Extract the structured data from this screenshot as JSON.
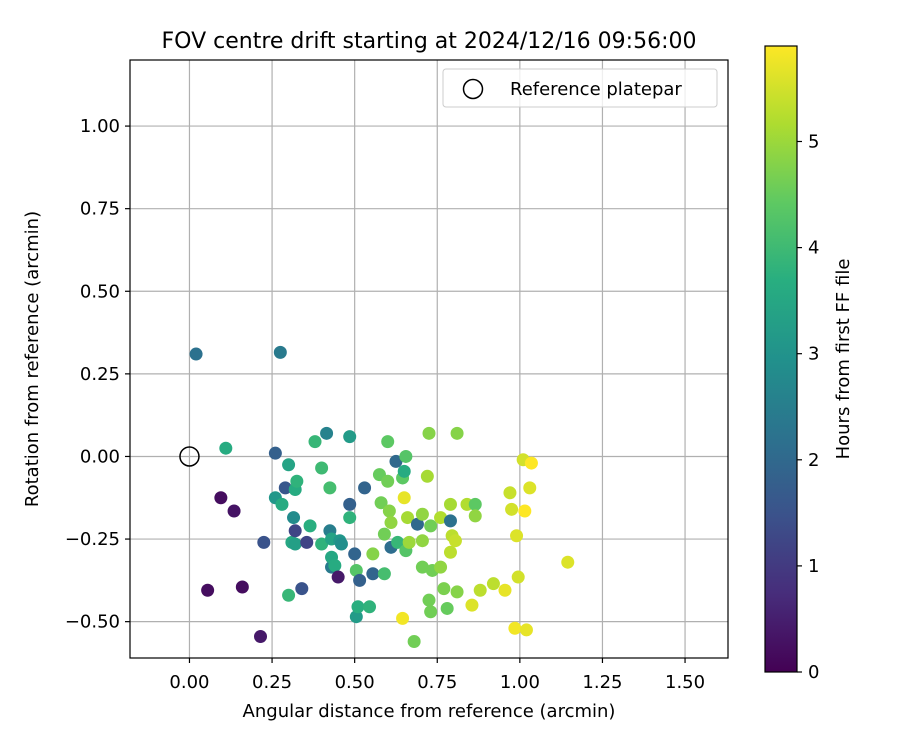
{
  "chart_data": {
    "type": "scatter",
    "title": "FOV centre drift starting at 2024/12/16 09:56:00",
    "xlabel": "Angular distance from reference (arcmin)",
    "ylabel": "Rotation from reference (arcmin)",
    "xlim": [
      -0.18,
      1.63
    ],
    "ylim": [
      -0.61,
      1.2
    ],
    "xticks": [
      0.0,
      0.25,
      0.5,
      0.75,
      1.0,
      1.25,
      1.5
    ],
    "xtick_labels": [
      "0.00",
      "0.25",
      "0.50",
      "0.75",
      "1.00",
      "1.25",
      "1.50"
    ],
    "yticks": [
      -0.5,
      -0.25,
      0.0,
      0.25,
      0.5,
      0.75,
      1.0
    ],
    "ytick_labels": [
      "−0.50",
      "−0.25",
      "0.00",
      "0.25",
      "0.50",
      "0.75",
      "1.00"
    ],
    "grid": true,
    "legend": {
      "position": "top-right",
      "entries": [
        "Reference platepar"
      ]
    },
    "reference_point": {
      "x": 0.0,
      "y": 0.0
    },
    "colorbar": {
      "label": "Hours from first FF file",
      "range": [
        0,
        5.9
      ],
      "ticks": [
        0,
        1,
        2,
        3,
        4,
        5
      ],
      "tick_labels": [
        "0",
        "1",
        "2",
        "3",
        "4",
        "5"
      ],
      "colormap": "viridis"
    },
    "points": [
      {
        "x": 0.02,
        "y": 0.31,
        "h": 2.2
      },
      {
        "x": 0.275,
        "y": 0.315,
        "h": 2.4
      },
      {
        "x": 0.11,
        "y": 0.025,
        "h": 3.6
      },
      {
        "x": 0.095,
        "y": -0.125,
        "h": 0.2
      },
      {
        "x": 0.135,
        "y": -0.165,
        "h": 0.3
      },
      {
        "x": 0.055,
        "y": -0.405,
        "h": 0.2
      },
      {
        "x": 0.16,
        "y": -0.395,
        "h": 0.2
      },
      {
        "x": 0.215,
        "y": -0.545,
        "h": 0.4
      },
      {
        "x": 0.225,
        "y": -0.26,
        "h": 1.5
      },
      {
        "x": 0.26,
        "y": 0.01,
        "h": 1.8
      },
      {
        "x": 0.26,
        "y": -0.125,
        "h": 3.1
      },
      {
        "x": 0.28,
        "y": -0.145,
        "h": 3.6
      },
      {
        "x": 0.29,
        "y": -0.095,
        "h": 1.6
      },
      {
        "x": 0.3,
        "y": -0.025,
        "h": 3.4
      },
      {
        "x": 0.3,
        "y": -0.42,
        "h": 3.9
      },
      {
        "x": 0.31,
        "y": -0.26,
        "h": 3.5
      },
      {
        "x": 0.315,
        "y": -0.185,
        "h": 2.8
      },
      {
        "x": 0.32,
        "y": -0.1,
        "h": 3.6
      },
      {
        "x": 0.32,
        "y": -0.225,
        "h": 1.2
      },
      {
        "x": 0.32,
        "y": -0.265,
        "h": 3.3
      },
      {
        "x": 0.325,
        "y": -0.075,
        "h": 3.8
      },
      {
        "x": 0.34,
        "y": -0.4,
        "h": 1.5
      },
      {
        "x": 0.355,
        "y": -0.26,
        "h": 1.2
      },
      {
        "x": 0.365,
        "y": -0.21,
        "h": 3.7
      },
      {
        "x": 0.38,
        "y": 0.045,
        "h": 3.9
      },
      {
        "x": 0.4,
        "y": -0.035,
        "h": 4.0
      },
      {
        "x": 0.4,
        "y": -0.265,
        "h": 3.8
      },
      {
        "x": 0.415,
        "y": 0.07,
        "h": 2.6
      },
      {
        "x": 0.425,
        "y": -0.095,
        "h": 4.1
      },
      {
        "x": 0.425,
        "y": -0.225,
        "h": 2.5
      },
      {
        "x": 0.43,
        "y": -0.25,
        "h": 3.4
      },
      {
        "x": 0.43,
        "y": -0.335,
        "h": 2.4
      },
      {
        "x": 0.43,
        "y": -0.305,
        "h": 3.5
      },
      {
        "x": 0.44,
        "y": -0.33,
        "h": 3.6
      },
      {
        "x": 0.45,
        "y": -0.365,
        "h": 0.4
      },
      {
        "x": 0.455,
        "y": -0.255,
        "h": 3.1
      },
      {
        "x": 0.46,
        "y": -0.265,
        "h": 2.9
      },
      {
        "x": 0.485,
        "y": 0.06,
        "h": 3.2
      },
      {
        "x": 0.485,
        "y": -0.145,
        "h": 1.8
      },
      {
        "x": 0.485,
        "y": -0.185,
        "h": 3.8
      },
      {
        "x": 0.5,
        "y": -0.295,
        "h": 1.9
      },
      {
        "x": 0.505,
        "y": -0.485,
        "h": 3.2
      },
      {
        "x": 0.505,
        "y": -0.345,
        "h": 4.3
      },
      {
        "x": 0.51,
        "y": -0.455,
        "h": 3.7
      },
      {
        "x": 0.515,
        "y": -0.375,
        "h": 1.8
      },
      {
        "x": 0.53,
        "y": -0.095,
        "h": 1.9
      },
      {
        "x": 0.545,
        "y": -0.455,
        "h": 3.8
      },
      {
        "x": 0.555,
        "y": -0.295,
        "h": 4.8
      },
      {
        "x": 0.555,
        "y": -0.355,
        "h": 1.9
      },
      {
        "x": 0.575,
        "y": -0.055,
        "h": 4.5
      },
      {
        "x": 0.58,
        "y": -0.14,
        "h": 4.6
      },
      {
        "x": 0.59,
        "y": -0.235,
        "h": 4.6
      },
      {
        "x": 0.59,
        "y": -0.355,
        "h": 4.1
      },
      {
        "x": 0.6,
        "y": 0.045,
        "h": 4.4
      },
      {
        "x": 0.6,
        "y": -0.075,
        "h": 4.6
      },
      {
        "x": 0.605,
        "y": -0.165,
        "h": 4.8
      },
      {
        "x": 0.61,
        "y": -0.275,
        "h": 2.1
      },
      {
        "x": 0.61,
        "y": -0.2,
        "h": 4.9
      },
      {
        "x": 0.625,
        "y": -0.015,
        "h": 2.0
      },
      {
        "x": 0.63,
        "y": -0.26,
        "h": 3.9
      },
      {
        "x": 0.645,
        "y": -0.065,
        "h": 4.4
      },
      {
        "x": 0.645,
        "y": -0.49,
        "h": 5.8
      },
      {
        "x": 0.65,
        "y": -0.125,
        "h": 5.7
      },
      {
        "x": 0.65,
        "y": -0.045,
        "h": 3.6
      },
      {
        "x": 0.655,
        "y": -0.285,
        "h": 4.3
      },
      {
        "x": 0.655,
        "y": 0.0,
        "h": 4.3
      },
      {
        "x": 0.66,
        "y": -0.185,
        "h": 5.1
      },
      {
        "x": 0.665,
        "y": -0.26,
        "h": 5.0
      },
      {
        "x": 0.68,
        "y": -0.56,
        "h": 4.6
      },
      {
        "x": 0.69,
        "y": -0.205,
        "h": 2.0
      },
      {
        "x": 0.705,
        "y": -0.175,
        "h": 4.9
      },
      {
        "x": 0.705,
        "y": -0.255,
        "h": 4.9
      },
      {
        "x": 0.705,
        "y": -0.335,
        "h": 4.6
      },
      {
        "x": 0.72,
        "y": -0.06,
        "h": 5.1
      },
      {
        "x": 0.725,
        "y": 0.07,
        "h": 4.8
      },
      {
        "x": 0.725,
        "y": -0.435,
        "h": 4.6
      },
      {
        "x": 0.73,
        "y": -0.21,
        "h": 4.6
      },
      {
        "x": 0.73,
        "y": -0.47,
        "h": 4.6
      },
      {
        "x": 0.735,
        "y": -0.345,
        "h": 4.6
      },
      {
        "x": 0.76,
        "y": -0.185,
        "h": 5.2
      },
      {
        "x": 0.76,
        "y": -0.335,
        "h": 4.9
      },
      {
        "x": 0.77,
        "y": -0.4,
        "h": 4.7
      },
      {
        "x": 0.78,
        "y": -0.46,
        "h": 4.5
      },
      {
        "x": 0.79,
        "y": -0.195,
        "h": 2.2
      },
      {
        "x": 0.79,
        "y": -0.29,
        "h": 5.3
      },
      {
        "x": 0.79,
        "y": -0.145,
        "h": 5.1
      },
      {
        "x": 0.795,
        "y": -0.24,
        "h": 5.3
      },
      {
        "x": 0.805,
        "y": -0.255,
        "h": 5.4
      },
      {
        "x": 0.81,
        "y": 0.07,
        "h": 4.8
      },
      {
        "x": 0.81,
        "y": -0.41,
        "h": 4.8
      },
      {
        "x": 0.84,
        "y": -0.145,
        "h": 5.2
      },
      {
        "x": 0.855,
        "y": -0.45,
        "h": 5.6
      },
      {
        "x": 0.865,
        "y": -0.145,
        "h": 4.4
      },
      {
        "x": 0.865,
        "y": -0.18,
        "h": 4.9
      },
      {
        "x": 0.88,
        "y": -0.405,
        "h": 5.3
      },
      {
        "x": 0.92,
        "y": -0.385,
        "h": 5.3
      },
      {
        "x": 0.955,
        "y": -0.405,
        "h": 5.7
      },
      {
        "x": 0.97,
        "y": -0.11,
        "h": 5.4
      },
      {
        "x": 0.975,
        "y": -0.16,
        "h": 5.5
      },
      {
        "x": 0.985,
        "y": -0.52,
        "h": 5.8
      },
      {
        "x": 0.99,
        "y": -0.24,
        "h": 5.6
      },
      {
        "x": 0.995,
        "y": -0.365,
        "h": 5.5
      },
      {
        "x": 1.01,
        "y": -0.01,
        "h": 5.5
      },
      {
        "x": 1.015,
        "y": -0.165,
        "h": 5.9
      },
      {
        "x": 1.02,
        "y": -0.525,
        "h": 5.7
      },
      {
        "x": 1.03,
        "y": -0.095,
        "h": 5.6
      },
      {
        "x": 1.035,
        "y": -0.02,
        "h": 5.9
      },
      {
        "x": 1.145,
        "y": -0.32,
        "h": 5.6
      }
    ]
  }
}
